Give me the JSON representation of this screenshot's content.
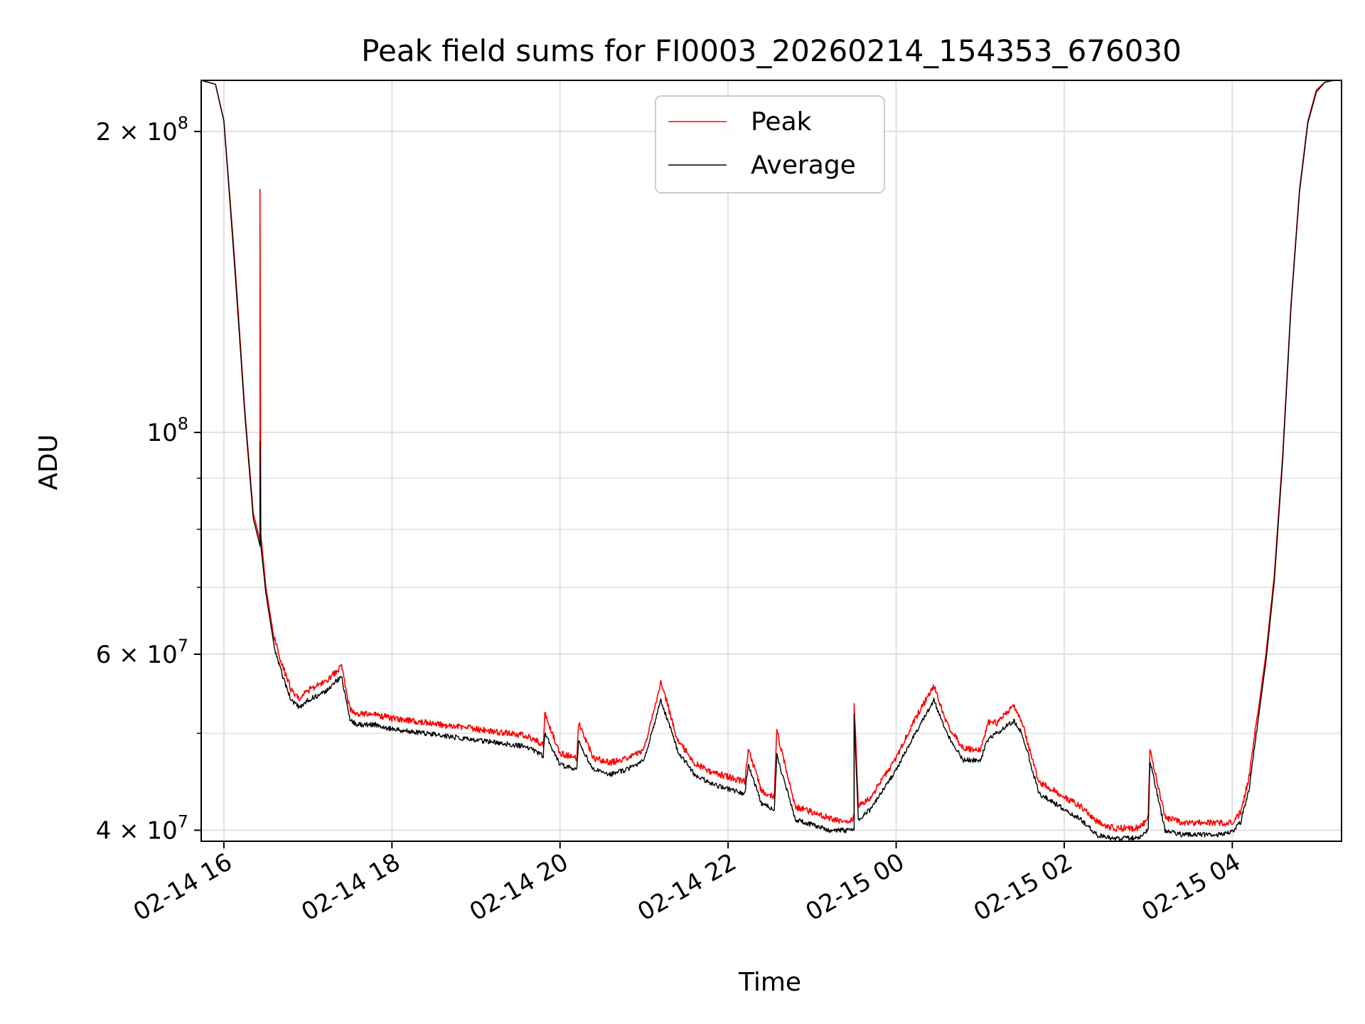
{
  "chart_data": {
    "type": "line",
    "title": "Peak field sums for FI0003_20260214_154353_676030",
    "xlabel": "Time",
    "ylabel": "ADU",
    "yscale": "log",
    "grid": true,
    "legend_position": "upper-center",
    "x_unit": "hours since 02-14 16:00",
    "xlim": [
      -0.27,
      13.3
    ],
    "ylim": [
      39000000,
      225000000
    ],
    "x_ticks": [
      {
        "value": 0,
        "label": "02-14 16"
      },
      {
        "value": 2,
        "label": "02-14 18"
      },
      {
        "value": 4,
        "label": "02-14 20"
      },
      {
        "value": 6,
        "label": "02-14 22"
      },
      {
        "value": 8,
        "label": "02-15 00"
      },
      {
        "value": 10,
        "label": "02-15 02"
      },
      {
        "value": 12,
        "label": "02-15 04"
      }
    ],
    "y_ticks": [
      {
        "value": 40000000,
        "mantissa": "4",
        "exp": "7"
      },
      {
        "value": 60000000,
        "mantissa": "6",
        "exp": "7"
      },
      {
        "value": 100000000,
        "mantissa": "",
        "exp": "8"
      },
      {
        "value": 200000000,
        "mantissa": "2",
        "exp": "8"
      }
    ],
    "series": [
      {
        "name": "Peak",
        "color": "#ff0000",
        "x": [
          -0.27,
          -0.1,
          0,
          0.1,
          0.15,
          0.25,
          0.35,
          0.43,
          0.43,
          0.44,
          0.5,
          0.6,
          0.7,
          0.8,
          0.9,
          1.0,
          1.2,
          1.4,
          1.5,
          1.6,
          1.8,
          2.0,
          2.4,
          2.8,
          3.2,
          3.6,
          3.8,
          3.82,
          4.0,
          4.2,
          4.22,
          4.4,
          4.6,
          4.8,
          5.0,
          5.2,
          5.4,
          5.6,
          5.8,
          6.0,
          6.2,
          6.24,
          6.4,
          6.55,
          6.58,
          6.8,
          7.0,
          7.2,
          7.4,
          7.5,
          7.5,
          7.55,
          7.7,
          8.0,
          8.2,
          8.45,
          8.6,
          8.8,
          9.0,
          9.1,
          9.2,
          9.4,
          9.5,
          9.7,
          9.9,
          10.0,
          10.2,
          10.4,
          10.6,
          10.9,
          11.0,
          11.02,
          11.2,
          11.4,
          11.6,
          11.8,
          12.0,
          12.1,
          12.2,
          12.3,
          12.4,
          12.5,
          12.6,
          12.7,
          12.8,
          12.9,
          13.0,
          13.1,
          13.2,
          13.3
        ],
        "y": [
          225000000,
          223000000,
          205000000,
          160000000,
          140000000,
          105000000,
          83000000,
          78000000,
          175000000,
          79000000,
          70000000,
          62000000,
          58000000,
          55000000,
          54000000,
          55000000,
          56000000,
          58000000,
          52500000,
          52000000,
          52000000,
          51500000,
          51000000,
          50500000,
          50000000,
          49500000,
          48500000,
          52000000,
          47500000,
          47000000,
          51000000,
          47000000,
          46500000,
          47000000,
          48000000,
          56000000,
          49000000,
          46500000,
          45500000,
          45000000,
          44500000,
          48000000,
          43500000,
          43000000,
          50000000,
          42000000,
          41500000,
          41000000,
          40500000,
          41000000,
          53500000,
          42000000,
          43000000,
          47000000,
          51000000,
          55500000,
          51000000,
          48000000,
          48000000,
          51000000,
          51000000,
          53000000,
          51000000,
          44500000,
          43500000,
          43000000,
          42000000,
          40500000,
          40000000,
          40000000,
          41000000,
          48000000,
          41000000,
          40500000,
          40500000,
          40500000,
          40500000,
          41500000,
          45000000,
          52000000,
          60000000,
          72000000,
          95000000,
          135000000,
          175000000,
          205000000,
          220000000,
          224000000,
          225000000,
          225000000
        ]
      },
      {
        "name": "Average",
        "color": "#000000",
        "x": [
          -0.27,
          -0.1,
          0,
          0.1,
          0.15,
          0.25,
          0.35,
          0.43,
          0.43,
          0.44,
          0.5,
          0.6,
          0.7,
          0.8,
          0.9,
          1.0,
          1.2,
          1.4,
          1.5,
          1.6,
          1.8,
          2.0,
          2.4,
          2.8,
          3.2,
          3.6,
          3.8,
          3.82,
          4.0,
          4.2,
          4.22,
          4.4,
          4.6,
          4.8,
          5.0,
          5.2,
          5.4,
          5.6,
          5.8,
          6.0,
          6.2,
          6.24,
          6.4,
          6.55,
          6.58,
          6.8,
          7.0,
          7.2,
          7.4,
          7.5,
          7.5,
          7.55,
          7.7,
          8.0,
          8.2,
          8.45,
          8.6,
          8.8,
          9.0,
          9.1,
          9.2,
          9.4,
          9.5,
          9.7,
          9.9,
          10.0,
          10.2,
          10.4,
          10.6,
          10.9,
          11.0,
          11.02,
          11.2,
          11.4,
          11.6,
          11.8,
          12.0,
          12.1,
          12.2,
          12.3,
          12.4,
          12.5,
          12.6,
          12.7,
          12.8,
          12.9,
          13.0,
          13.1,
          13.2,
          13.3
        ],
        "y": [
          225000000,
          223000000,
          205000000,
          158000000,
          138000000,
          104000000,
          82000000,
          77000000,
          98000000,
          77000000,
          69000000,
          61000000,
          57000000,
          54000000,
          53000000,
          54000000,
          55000000,
          57000000,
          51500000,
          51000000,
          51000000,
          50500000,
          50000000,
          49500000,
          49000000,
          48500000,
          47500000,
          50000000,
          46500000,
          46000000,
          49000000,
          46000000,
          45500000,
          46000000,
          47000000,
          54000000,
          48000000,
          45500000,
          44500000,
          44000000,
          43500000,
          46500000,
          42500000,
          42000000,
          47500000,
          41000000,
          40500000,
          40000000,
          40000000,
          40000000,
          52000000,
          41000000,
          42000000,
          46000000,
          49500000,
          54000000,
          50000000,
          47000000,
          47000000,
          49500000,
          50000000,
          51500000,
          50000000,
          43500000,
          42500000,
          42000000,
          41000000,
          39500000,
          39200000,
          39300000,
          40000000,
          47000000,
          40000000,
          39600000,
          39600000,
          39600000,
          39800000,
          40800000,
          44000000,
          51000000,
          59000000,
          71000000,
          94000000,
          134000000,
          174000000,
          204000000,
          219000000,
          224000000,
          225000000,
          225000000
        ]
      }
    ]
  }
}
